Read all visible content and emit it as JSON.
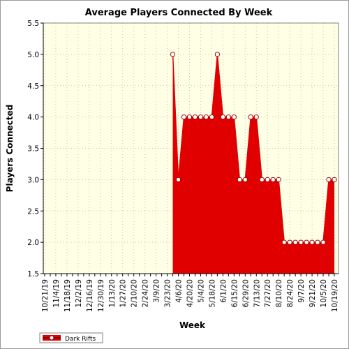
{
  "chart_data": {
    "type": "area",
    "title": "Average Players Connected By Week",
    "xlabel": "Week",
    "ylabel": "Players Connected",
    "ylim": [
      1.5,
      5.5
    ],
    "yticks": [
      "1.5",
      "2.0",
      "2.5",
      "3.0",
      "3.5",
      "4.0",
      "4.5",
      "5.0",
      "5.5"
    ],
    "grid": true,
    "legend_position": "bottom-left",
    "background_color": "#ffffe6",
    "series_color": "#e00000",
    "categories": [
      "10/21/19",
      "10/28/19",
      "11/4/19",
      "11/11/19",
      "11/18/19",
      "11/25/19",
      "12/2/19",
      "12/9/19",
      "12/16/19",
      "12/23/19",
      "12/30/19",
      "1/6/20",
      "1/13/20",
      "1/20/20",
      "1/27/20",
      "2/3/20",
      "2/10/20",
      "2/17/20",
      "2/24/20",
      "3/2/20",
      "3/9/20",
      "3/16/20",
      "3/23/20",
      "3/30/20",
      "4/6/20",
      "4/13/20",
      "4/20/20",
      "4/27/20",
      "5/4/20",
      "5/11/20",
      "5/18/20",
      "5/25/20",
      "6/1/20",
      "6/8/20",
      "6/15/20",
      "6/22/20",
      "6/29/20",
      "7/6/20",
      "7/13/20",
      "7/20/20",
      "7/27/20",
      "8/3/20",
      "8/10/20",
      "8/17/20",
      "8/24/20",
      "8/31/20",
      "9/7/20",
      "9/14/20",
      "9/21/20",
      "9/28/20",
      "10/5/20",
      "10/12/20",
      "10/19/20"
    ],
    "x_tick_labels": [
      "10/21/19",
      "11/4/19",
      "11/18/19",
      "12/2/19",
      "12/16/19",
      "12/30/19",
      "1/13/20",
      "1/27/20",
      "2/10/20",
      "2/24/20",
      "3/9/20",
      "3/23/20",
      "4/6/20",
      "4/20/20",
      "5/4/20",
      "5/18/20",
      "6/1/20",
      "6/15/20",
      "6/29/20",
      "7/13/20",
      "7/27/20",
      "8/10/20",
      "8/24/20",
      "9/7/20",
      "9/21/20",
      "10/5/20",
      "10/19/20"
    ],
    "series": [
      {
        "name": "Dark Rifts",
        "values": [
          null,
          null,
          null,
          null,
          null,
          null,
          null,
          null,
          null,
          null,
          null,
          null,
          null,
          null,
          null,
          null,
          null,
          null,
          null,
          null,
          null,
          null,
          null,
          5.0,
          3.0,
          4.0,
          4.0,
          4.0,
          4.0,
          4.0,
          4.0,
          5.0,
          4.0,
          4.0,
          4.0,
          3.0,
          3.0,
          4.0,
          4.0,
          3.0,
          3.0,
          3.0,
          3.0,
          2.0,
          2.0,
          2.0,
          2.0,
          2.0,
          2.0,
          2.0,
          2.0,
          3.0,
          3.0
        ]
      }
    ]
  }
}
